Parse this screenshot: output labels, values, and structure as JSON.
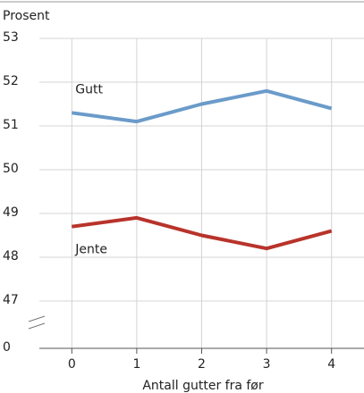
{
  "chart_data": {
    "type": "line",
    "y_axis_label": "Prosent",
    "x_axis_label": "Antall gutter fra før",
    "x": [
      0,
      1,
      2,
      3,
      4
    ],
    "xlim": [
      -0.5,
      4.5
    ],
    "xticks": [
      0,
      1,
      2,
      3,
      4
    ],
    "ylim": [
      0,
      53
    ],
    "yticks": [
      0,
      47,
      48,
      49,
      50,
      51,
      52,
      53
    ],
    "axis_break": true,
    "grid": true,
    "series": [
      {
        "name": "Gutt",
        "color": "#6a9bca",
        "values": [
          51.3,
          51.1,
          51.5,
          51.8,
          51.4
        ]
      },
      {
        "name": "Jente",
        "color": "#b8332b",
        "values": [
          48.7,
          48.9,
          48.5,
          48.2,
          48.6
        ]
      }
    ]
  }
}
